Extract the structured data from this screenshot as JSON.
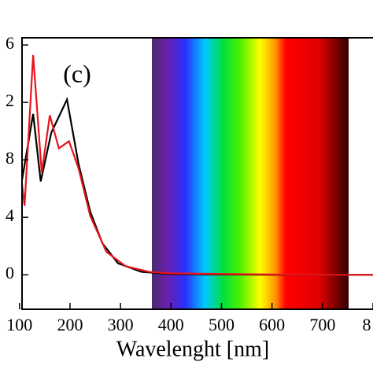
{
  "chart_data": {
    "type": "line",
    "x_label": "Wavelenght [nm]",
    "annotation": "(c)",
    "xlim": [
      105,
      800
    ],
    "ylim": [
      -2.4,
      16.5
    ],
    "xticks": [
      100,
      200,
      300,
      400,
      500,
      600,
      700,
      {
        "value": 800,
        "label": "8"
      }
    ],
    "yticks": [
      {
        "value": 16,
        "label": "6"
      },
      {
        "value": 12,
        "label": "2"
      },
      8,
      4,
      0
    ],
    "series": [
      {
        "color": "#000000",
        "x": [
          105,
          127,
          142,
          163,
          194,
          217,
          240,
          264,
          295,
          342,
          400,
          500,
          600,
          700,
          800
        ],
        "values": [
          6.6,
          11.2,
          6.5,
          9.9,
          12.2,
          7.7,
          4.4,
          2.2,
          0.8,
          0.2,
          0.05,
          0.02,
          0,
          0,
          0
        ]
      },
      {
        "color": "#e8151b",
        "x": [
          105,
          110,
          127,
          144,
          160,
          178,
          198,
          217,
          240,
          272,
          310,
          357,
          400,
          500,
          600,
          700,
          800
        ],
        "values": [
          6.3,
          4.8,
          15.3,
          7.1,
          11.1,
          8.8,
          9.3,
          7.4,
          4.1,
          1.6,
          0.6,
          0.2,
          0.1,
          0.05,
          0.02,
          0,
          0
        ]
      }
    ]
  }
}
